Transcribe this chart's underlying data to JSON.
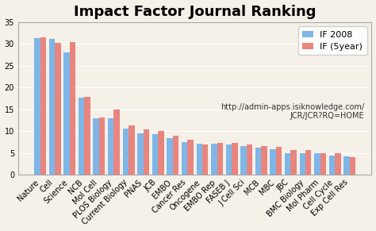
{
  "title": "Impact Factor Journal Ranking",
  "categories": [
    "Nature",
    "Cell",
    "Science",
    "NCB",
    "Mol Cell",
    "PLOS Biology",
    "Current Biology",
    "PNAS",
    "JCB",
    "EMBO",
    "Cancer Res",
    "Oncogene",
    "EMBO Rep",
    "FASEB J",
    "J Cell Sci",
    "MCB",
    "MBC",
    "JBC",
    "BMC Biology",
    "Mol Pharm",
    "Cell Cycle",
    "Exp Cell Res"
  ],
  "if2008": [
    31.4,
    31.2,
    28.1,
    17.6,
    13.0,
    12.9,
    10.6,
    9.5,
    9.2,
    8.3,
    7.5,
    7.1,
    7.1,
    7.0,
    6.6,
    6.1,
    5.9,
    5.0,
    5.0,
    4.9,
    4.3,
    4.1
  ],
  "if5year": [
    31.6,
    30.2,
    30.4,
    17.8,
    13.2,
    15.0,
    11.2,
    10.3,
    10.1,
    8.9,
    8.1,
    6.9,
    7.3,
    7.3,
    6.9,
    6.5,
    6.3,
    5.7,
    5.7,
    5.0,
    4.9,
    4.0
  ],
  "color_2008": "#7EB6E8",
  "color_5year": "#E8857E",
  "legend_label_2008": "IF 2008",
  "legend_label_5year": "IF (5year)",
  "url_line1": "http://admin-apps.isiknowledge.com/",
  "url_line2": "JCR/JCR?RQ=HOME",
  "ylim": [
    0,
    35
  ],
  "yticks": [
    0,
    5,
    10,
    15,
    20,
    25,
    30,
    35
  ],
  "bg_color": "#F5F0E8",
  "title_fontsize": 13,
  "tick_fontsize": 7,
  "legend_fontsize": 8,
  "url_fontsize": 7
}
